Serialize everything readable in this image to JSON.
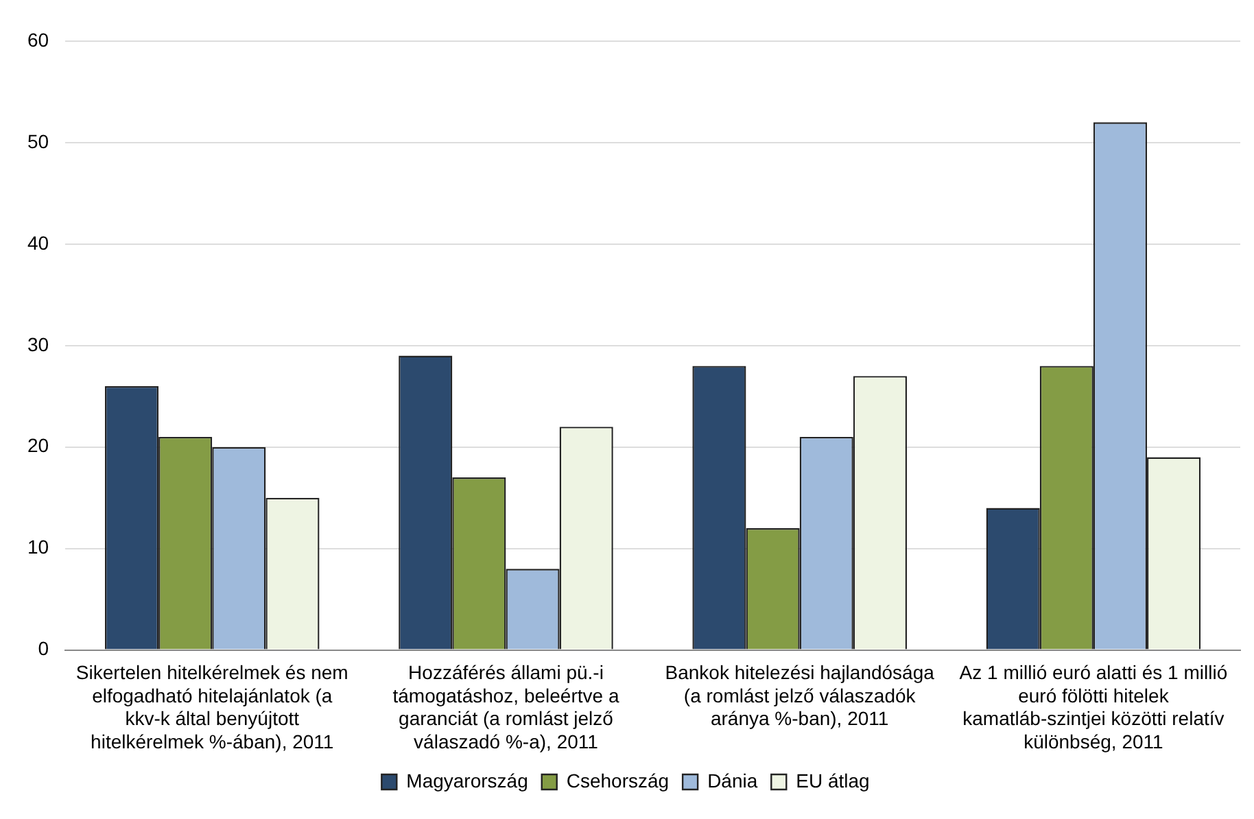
{
  "chart_data": {
    "type": "bar",
    "categories": [
      "Sikertelen hitelkérelmek és nem elfogadható hitelajánlatok (a kkv-k által benyújtott hitelkérelmek %-ában), 2011",
      "Hozzáférés állami pü.-i támogatáshoz, beleértve a garanciát (a romlást jelző válaszadó %-a), 2011",
      "Bankok hitelezési hajlandósága (a romlást jelző válaszadók aránya %-ban), 2011",
      "Az 1 millió euró alatti és 1 millió euró fölötti hitelek kamatláb-szintjei közötti relatív különbség, 2011"
    ],
    "series": [
      {
        "name": "Magyarország",
        "color": "#2c4a6e",
        "values": [
          26,
          29,
          28,
          14
        ]
      },
      {
        "name": "Csehország",
        "color": "#849c45",
        "values": [
          21,
          17,
          12,
          28
        ]
      },
      {
        "name": "Dánia",
        "color": "#9fbadb",
        "values": [
          20,
          8,
          21,
          52
        ]
      },
      {
        "name": "EU átlag",
        "color": "#eef4e3",
        "values": [
          15,
          22,
          27,
          19
        ]
      }
    ],
    "ylim": [
      0,
      60
    ],
    "yticks": [
      0,
      10,
      20,
      30,
      40,
      50,
      60
    ],
    "grid": "y",
    "legend": "bottom"
  }
}
